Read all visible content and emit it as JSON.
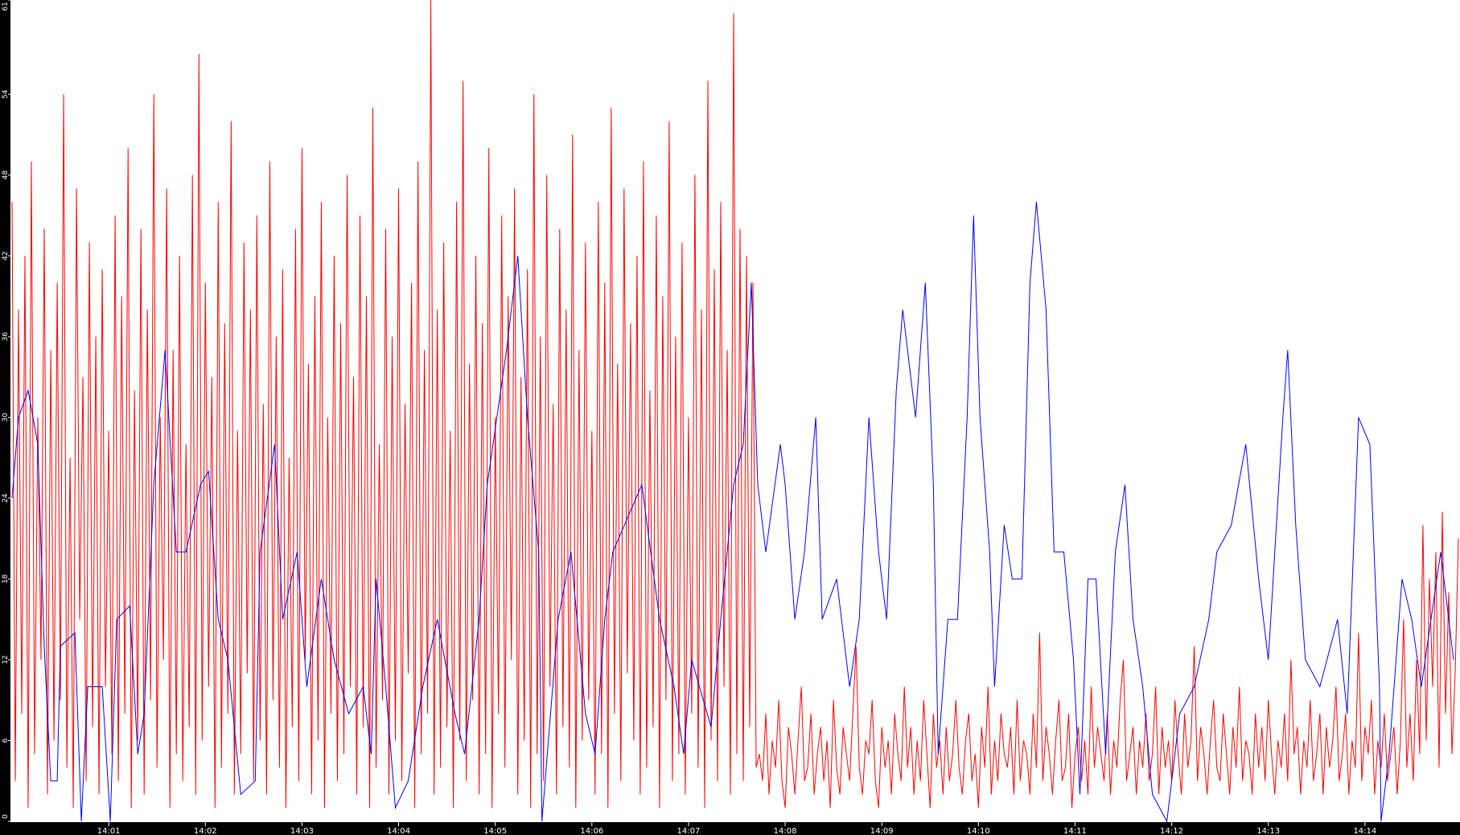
{
  "chart_data": {
    "type": "line",
    "title": "",
    "xlabel": "",
    "ylabel": "",
    "ylim": [
      0,
      61
    ],
    "xlim": [
      "14:00:00",
      "14:15:00"
    ],
    "grid": false,
    "legend": "none",
    "background": "#ffffff",
    "axis_background": "#000000",
    "y_ticks": [
      "0",
      "6",
      "12",
      "18",
      "24",
      "30",
      "36",
      "42",
      "48",
      "54",
      "61"
    ],
    "x_ticks": [
      "14:01",
      "14:02",
      "14:03",
      "14:04",
      "14:05",
      "14:06",
      "14:07",
      "14:08",
      "14:09",
      "14:10",
      "14:11",
      "14:12",
      "14:13",
      "14:14"
    ],
    "series": [
      {
        "color": "#ff0000",
        "start": "14:00:00",
        "step_seconds": 2,
        "values": [
          46,
          3,
          38,
          8,
          42,
          1,
          49,
          5,
          30,
          12,
          44,
          2,
          35,
          6,
          40,
          9,
          54,
          4,
          27,
          1,
          47,
          15,
          33,
          3,
          43,
          7,
          36,
          2,
          41,
          10,
          29,
          5,
          45,
          3,
          39,
          8,
          50,
          1,
          32,
          6,
          44,
          2,
          38,
          9,
          54,
          4,
          30,
          12,
          47,
          1,
          35,
          5,
          42,
          3,
          28,
          7,
          48,
          2,
          57,
          6,
          40,
          10,
          33,
          1,
          46,
          4,
          37,
          8,
          52,
          2,
          29,
          5,
          43,
          11,
          38,
          3,
          45,
          6,
          31,
          2,
          49,
          9,
          36,
          4,
          41,
          1,
          27,
          7,
          44,
          3,
          50,
          12,
          34,
          2,
          39,
          6,
          46,
          1,
          30,
          8,
          42,
          3,
          37,
          5,
          48,
          10,
          33,
          2,
          45,
          7,
          39,
          1,
          53,
          4,
          28,
          9,
          44,
          2,
          36,
          6,
          47,
          3,
          31,
          11,
          40,
          1,
          49,
          5,
          35,
          8,
          61,
          2,
          38,
          4,
          43,
          7,
          29,
          1,
          46,
          6,
          55,
          3,
          34,
          9,
          42,
          2,
          37,
          5,
          50,
          1,
          30,
          8,
          45,
          4,
          39,
          12,
          47,
          2,
          33,
          6,
          41,
          1,
          54,
          5,
          36,
          3,
          48,
          10,
          31,
          2,
          44,
          7,
          38,
          4,
          51,
          1,
          35,
          6,
          43,
          9,
          29,
          2,
          46,
          5,
          40,
          1,
          53,
          8,
          34,
          3,
          47,
          11,
          37,
          6,
          42,
          2,
          49,
          4,
          32,
          7,
          45,
          1,
          39,
          9,
          52,
          3,
          36,
          5,
          43,
          2,
          30,
          8,
          48,
          4,
          38,
          1,
          55,
          6,
          41,
          3,
          46,
          10,
          35,
          2,
          60,
          5,
          44,
          3,
          42,
          7,
          40,
          4,
          5,
          3,
          8,
          2,
          6,
          4,
          9,
          3,
          1,
          7,
          5,
          2,
          6,
          10,
          3,
          4,
          8,
          2,
          5,
          7,
          3,
          6,
          1,
          9,
          4,
          2,
          7,
          5,
          3,
          8,
          13,
          4,
          2,
          6,
          5,
          9,
          3,
          1,
          7,
          4,
          6,
          2,
          8,
          5,
          3,
          10,
          4,
          7,
          2,
          6,
          3,
          9,
          5,
          1,
          8,
          4,
          6,
          2,
          7,
          3,
          5,
          9,
          4,
          2,
          6,
          8,
          3,
          5,
          1,
          7,
          4,
          10,
          2,
          6,
          3,
          8,
          5,
          4,
          7,
          2,
          9,
          3,
          6,
          5,
          2,
          8,
          4,
          14,
          3,
          7,
          5,
          2,
          6,
          9,
          3,
          4,
          8,
          1,
          5,
          7,
          3,
          6,
          2,
          10,
          4,
          7,
          5,
          3,
          8,
          2,
          6,
          4,
          9,
          12,
          3,
          5,
          7,
          2,
          6,
          4,
          8,
          3,
          5,
          10,
          2,
          7,
          4,
          6,
          3,
          9,
          5,
          2,
          8,
          4,
          6,
          13,
          3,
          7,
          5,
          2,
          6,
          9,
          4,
          3,
          8,
          5,
          2,
          7,
          4,
          10,
          3,
          6,
          5,
          2,
          8,
          4,
          7,
          3,
          9,
          5,
          2,
          6,
          4,
          8,
          3,
          12,
          5,
          7,
          2,
          6,
          4,
          9,
          3,
          5,
          8,
          2,
          7,
          4,
          6,
          10,
          3,
          5,
          8,
          2,
          6,
          4,
          14,
          3,
          7,
          5,
          9,
          2,
          6,
          4,
          8,
          3,
          5,
          7,
          2,
          6,
          15,
          4,
          8,
          3,
          12,
          5,
          22,
          6,
          18,
          10,
          20,
          4,
          23,
          8,
          17,
          5,
          11,
          21
        ]
      },
      {
        "color": "#0000ff",
        "points": [
          [
            "14:00:00",
            24
          ],
          [
            "14:00:04",
            30
          ],
          [
            "14:00:10",
            32
          ],
          [
            "14:00:16",
            28
          ],
          [
            "14:00:20",
            13
          ],
          [
            "14:00:24",
            3
          ],
          [
            "14:00:28",
            3
          ],
          [
            "14:00:30",
            13
          ],
          [
            "14:00:39",
            14
          ],
          [
            "14:00:43",
            0
          ],
          [
            "14:00:47",
            10
          ],
          [
            "14:00:56",
            10
          ],
          [
            "14:01:01",
            0
          ],
          [
            "14:01:05",
            15
          ],
          [
            "14:01:13",
            16
          ],
          [
            "14:01:18",
            5
          ],
          [
            "14:01:22",
            8
          ],
          [
            "14:01:28",
            25
          ],
          [
            "14:01:35",
            35
          ],
          [
            "14:01:42",
            20
          ],
          [
            "14:01:48",
            20
          ],
          [
            "14:01:57",
            25
          ],
          [
            "14:02:02",
            26
          ],
          [
            "14:02:08",
            15
          ],
          [
            "14:02:14",
            12
          ],
          [
            "14:02:22",
            2
          ],
          [
            "14:02:31",
            3
          ],
          [
            "14:02:34",
            20
          ],
          [
            "14:02:43",
            28
          ],
          [
            "14:02:48",
            15
          ],
          [
            "14:02:57",
            20
          ],
          [
            "14:03:03",
            10
          ],
          [
            "14:03:12",
            18
          ],
          [
            "14:03:20",
            12
          ],
          [
            "14:03:29",
            8
          ],
          [
            "14:03:38",
            10
          ],
          [
            "14:03:43",
            5
          ],
          [
            "14:03:46",
            18
          ],
          [
            "14:03:52",
            10
          ],
          [
            "14:03:58",
            1
          ],
          [
            "14:04:06",
            3
          ],
          [
            "14:04:15",
            10
          ],
          [
            "14:04:24",
            15
          ],
          [
            "14:04:35",
            8
          ],
          [
            "14:04:41",
            5
          ],
          [
            "14:04:50",
            15
          ],
          [
            "14:04:55",
            25
          ],
          [
            "14:05:07",
            35
          ],
          [
            "14:05:14",
            42
          ],
          [
            "14:05:20",
            30
          ],
          [
            "14:05:27",
            20
          ],
          [
            "14:05:29",
            0
          ],
          [
            "14:05:39",
            15
          ],
          [
            "14:05:47",
            20
          ],
          [
            "14:05:56",
            8
          ],
          [
            "14:06:02",
            5
          ],
          [
            "14:06:08",
            15
          ],
          [
            "14:06:13",
            20
          ],
          [
            "14:06:31",
            25
          ],
          [
            "14:06:42",
            15
          ],
          [
            "14:06:51",
            10
          ],
          [
            "14:06:57",
            5
          ],
          [
            "14:07:02",
            12
          ],
          [
            "14:07:14",
            7
          ],
          [
            "14:07:20",
            15
          ],
          [
            "14:07:28",
            25
          ],
          [
            "14:07:34",
            28
          ],
          [
            "14:07:39",
            40
          ],
          [
            "14:07:43",
            25
          ],
          [
            "14:07:48",
            20
          ],
          [
            "14:07:57",
            28
          ],
          [
            "14:08:00",
            25
          ],
          [
            "14:08:06",
            15
          ],
          [
            "14:08:12",
            20
          ],
          [
            "14:08:19",
            30
          ],
          [
            "14:08:23",
            15
          ],
          [
            "14:08:32",
            18
          ],
          [
            "14:08:40",
            10
          ],
          [
            "14:08:46",
            15
          ],
          [
            "14:08:52",
            30
          ],
          [
            "14:08:58",
            20
          ],
          [
            "14:09:03",
            15
          ],
          [
            "14:09:09",
            32
          ],
          [
            "14:09:13",
            38
          ],
          [
            "14:09:21",
            30
          ],
          [
            "14:09:27",
            40
          ],
          [
            "14:09:32",
            25
          ],
          [
            "14:09:35",
            5
          ],
          [
            "14:09:41",
            15
          ],
          [
            "14:09:47",
            15
          ],
          [
            "14:09:53",
            30
          ],
          [
            "14:09:57",
            45
          ],
          [
            "14:10:01",
            30
          ],
          [
            "14:10:07",
            20
          ],
          [
            "14:10:10",
            10
          ],
          [
            "14:10:16",
            22
          ],
          [
            "14:10:21",
            18
          ],
          [
            "14:10:27",
            18
          ],
          [
            "14:10:32",
            40
          ],
          [
            "14:10:36",
            46
          ],
          [
            "14:10:42",
            38
          ],
          [
            "14:10:47",
            20
          ],
          [
            "14:10:53",
            20
          ],
          [
            "14:10:59",
            12
          ],
          [
            "14:11:03",
            2
          ],
          [
            "14:11:08",
            18
          ],
          [
            "14:11:13",
            18
          ],
          [
            "14:11:19",
            5
          ],
          [
            "14:11:25",
            20
          ],
          [
            "14:11:31",
            25
          ],
          [
            "14:11:36",
            15
          ],
          [
            "14:11:42",
            10
          ],
          [
            "14:11:48",
            2
          ],
          [
            "14:11:57",
            0
          ],
          [
            "14:12:05",
            8
          ],
          [
            "14:12:14",
            10
          ],
          [
            "14:12:23",
            15
          ],
          [
            "14:12:28",
            20
          ],
          [
            "14:12:37",
            22
          ],
          [
            "14:12:46",
            28
          ],
          [
            "14:12:54",
            18
          ],
          [
            "14:13:00",
            12
          ],
          [
            "14:13:09",
            30
          ],
          [
            "14:13:12",
            35
          ],
          [
            "14:13:17",
            22
          ],
          [
            "14:13:23",
            12
          ],
          [
            "14:13:32",
            10
          ],
          [
            "14:13:43",
            15
          ],
          [
            "14:13:49",
            8
          ],
          [
            "14:13:56",
            30
          ],
          [
            "14:14:03",
            28
          ],
          [
            "14:14:09",
            10
          ],
          [
            "14:14:10",
            0
          ],
          [
            "14:14:15",
            5
          ],
          [
            "14:14:23",
            18
          ],
          [
            "14:14:29",
            15
          ],
          [
            "14:14:35",
            10
          ],
          [
            "14:14:47",
            20
          ],
          [
            "14:14:55",
            12
          ]
        ]
      }
    ]
  }
}
